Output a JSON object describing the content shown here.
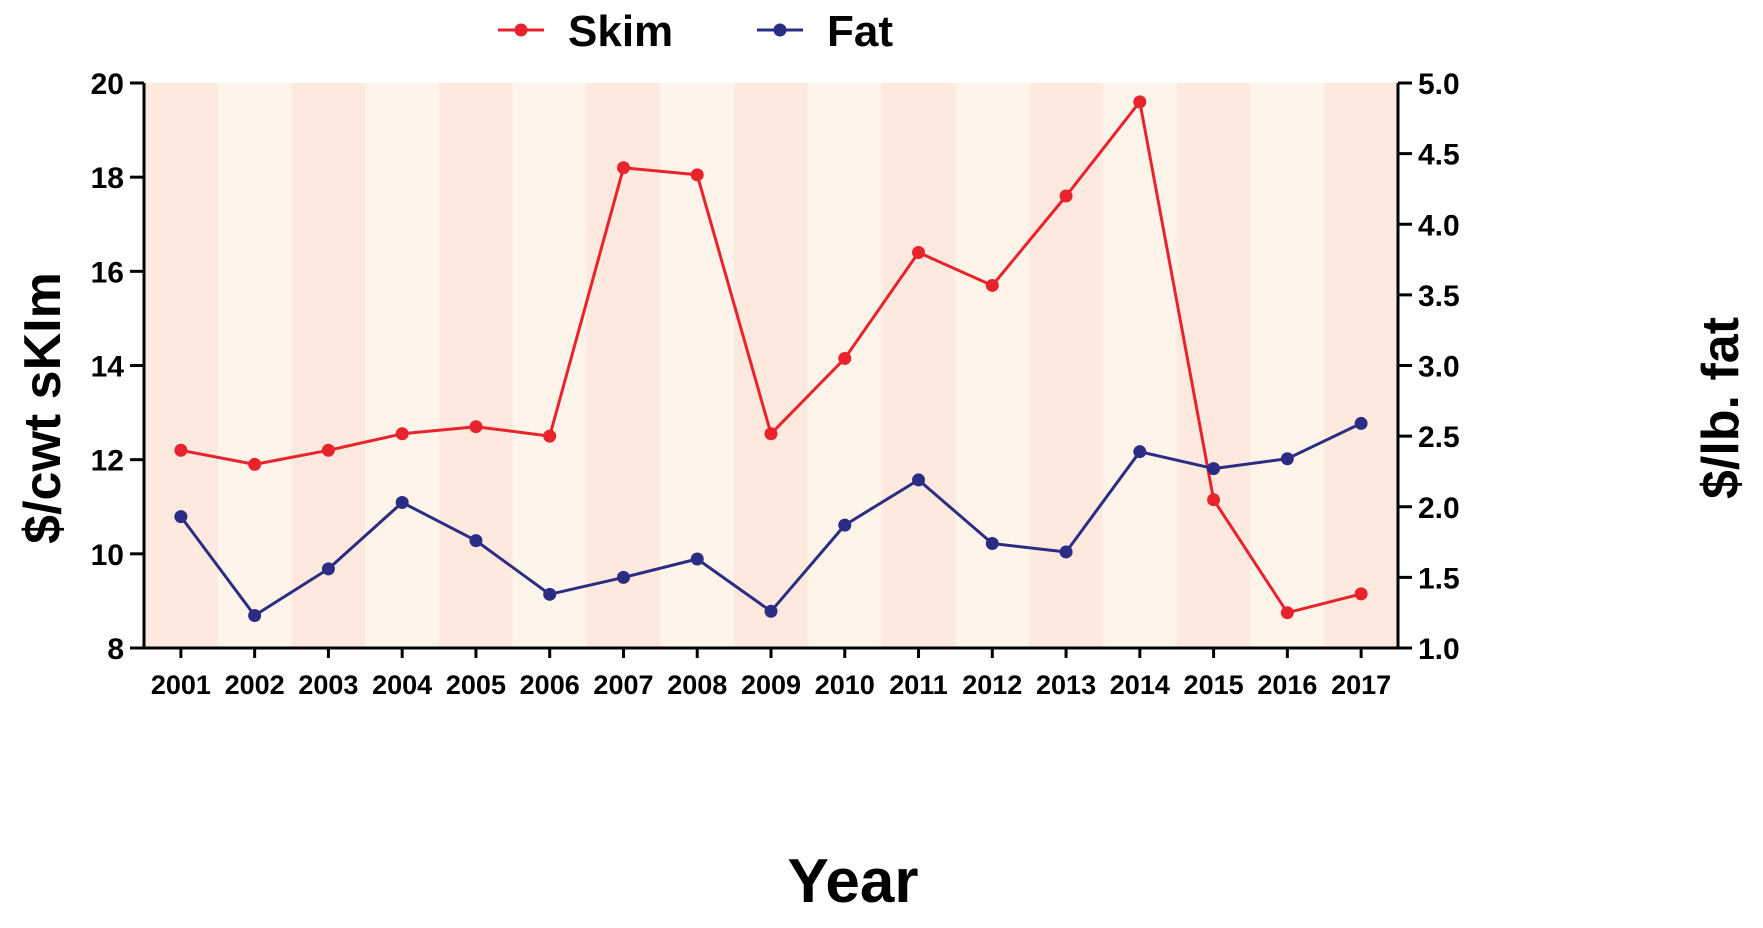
{
  "chart_data": {
    "type": "line",
    "title": "",
    "xlabel": "Year",
    "ylabel": "$/cwt sKIm",
    "y2label": "$/lb. fat",
    "categories": [
      "2001",
      "2002",
      "2003",
      "2004",
      "2005",
      "2006",
      "2007",
      "2008",
      "2009",
      "2010",
      "2011",
      "2012",
      "2013",
      "2014",
      "2015",
      "2016",
      "2017"
    ],
    "ylim": [
      8,
      20
    ],
    "yticks": [
      "8",
      "10",
      "12",
      "14",
      "16",
      "18",
      "20"
    ],
    "y2lim": [
      1.0,
      5.0
    ],
    "y2ticks": [
      "1.0",
      "1.5",
      "2.0",
      "2.5",
      "3.0",
      "3.5",
      "4.0",
      "4.5",
      "5.0"
    ],
    "legend_position": "top-center",
    "background_bands": [
      "#fde9de",
      "#fef4e9"
    ],
    "series": [
      {
        "name": "Skim",
        "axis": "left",
        "color": "#e8232c",
        "values": [
          12.2,
          11.9,
          12.2,
          12.55,
          12.7,
          12.5,
          18.2,
          18.05,
          12.55,
          14.15,
          16.4,
          15.7,
          17.6,
          19.6,
          11.15,
          8.75,
          9.15
        ]
      },
      {
        "name": "Fat",
        "axis": "right",
        "color": "#2b2d84",
        "values": [
          1.93,
          1.23,
          1.56,
          2.03,
          1.76,
          1.38,
          1.5,
          1.63,
          1.26,
          1.87,
          2.19,
          1.74,
          1.68,
          2.39,
          2.27,
          2.34,
          2.59
        ]
      }
    ]
  }
}
